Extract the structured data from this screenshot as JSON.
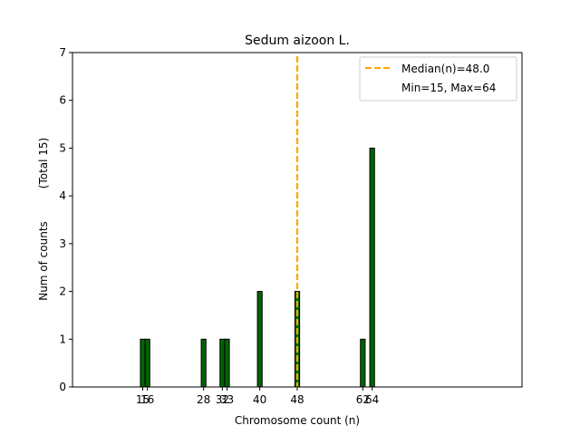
{
  "chart_data": {
    "type": "bar",
    "title": "Sedum aizoon L.",
    "xlabel": "Chromosome count (n)",
    "ylabel": "Num of counts",
    "ylabel_total": "(Total 15)",
    "xlim": [
      0,
      96
    ],
    "ylim": [
      0,
      7
    ],
    "yticks": [
      0,
      1,
      2,
      3,
      4,
      5,
      6,
      7
    ],
    "xticks": [
      15,
      16,
      28,
      32,
      33,
      40,
      48,
      62,
      64
    ],
    "bars": [
      {
        "x": 15,
        "count": 1
      },
      {
        "x": 16,
        "count": 1
      },
      {
        "x": 28,
        "count": 1
      },
      {
        "x": 32,
        "count": 1
      },
      {
        "x": 33,
        "count": 1
      },
      {
        "x": 40,
        "count": 2
      },
      {
        "x": 48,
        "count": 2
      },
      {
        "x": 62,
        "count": 1
      },
      {
        "x": 64,
        "count": 5
      }
    ],
    "median_line": {
      "x": 48.0,
      "label": "Median(n)=48.0"
    },
    "range_label": "Min=15, Max=64",
    "bar_color": "#006400",
    "median_color": "#ffa500",
    "legend_position": "top-right"
  }
}
